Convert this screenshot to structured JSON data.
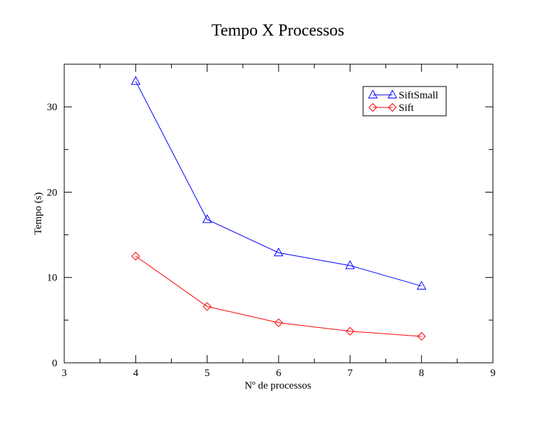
{
  "chart_data": {
    "type": "line",
    "title": "Tempo X Processos",
    "xlabel": "Nº de processos",
    "ylabel": "Tempo (s)",
    "xlim": [
      3,
      9
    ],
    "ylim": [
      0,
      35
    ],
    "xticks": [
      "3",
      "4",
      "5",
      "6",
      "7",
      "8",
      "9"
    ],
    "yticks": [
      "0",
      "10",
      "20",
      "30"
    ],
    "grid": false,
    "legend_position": "top-right",
    "x": [
      4,
      5,
      6,
      7,
      8
    ],
    "series": [
      {
        "name": "SiftSmall",
        "values": [
          33.0,
          16.8,
          12.9,
          11.4,
          9.0
        ],
        "color": "#0000ff",
        "marker": "triangle"
      },
      {
        "name": "Sift",
        "values": [
          12.5,
          6.6,
          4.7,
          3.7,
          3.1
        ],
        "color": "#ff0000",
        "marker": "diamond"
      }
    ]
  }
}
